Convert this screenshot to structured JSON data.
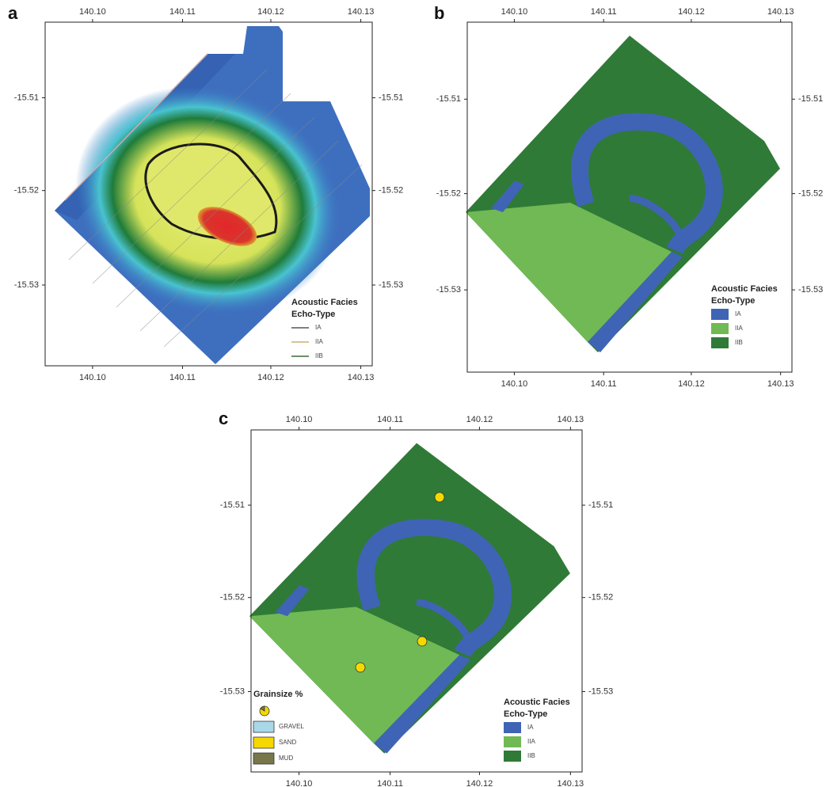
{
  "panels": [
    {
      "label": "a",
      "x_ticks": [
        "140.10",
        "140.11",
        "140.12",
        "140.13"
      ],
      "y_ticks": [
        "-15.51",
        "-15.52",
        "-15.53"
      ],
      "legend": {
        "title": "Acoustic Facies",
        "subtitle": "Echo-Type",
        "items": [
          "IA",
          "IIA",
          "IIB"
        ]
      }
    },
    {
      "label": "b",
      "x_ticks": [
        "140.10",
        "140.11",
        "140.12",
        "140.13"
      ],
      "y_ticks": [
        "-15.51",
        "-15.52",
        "-15.53"
      ],
      "legend": {
        "title": "Acoustic Facies",
        "subtitle": "Echo-Type",
        "items": [
          "IA",
          "IIA",
          "IIB"
        ]
      }
    },
    {
      "label": "c",
      "x_ticks": [
        "140.10",
        "140.11",
        "140.12",
        "140.13"
      ],
      "y_ticks": [
        "-15.51",
        "-15.52",
        "-15.53"
      ],
      "legend": {
        "title": "Acoustic Facies",
        "subtitle": "Echo-Type",
        "items": [
          "IA",
          "IIA",
          "IIB"
        ]
      },
      "grain_legend": {
        "title": "Grainsize %",
        "items": [
          "GRAVEL",
          "SAND",
          "MUD"
        ]
      }
    }
  ]
}
